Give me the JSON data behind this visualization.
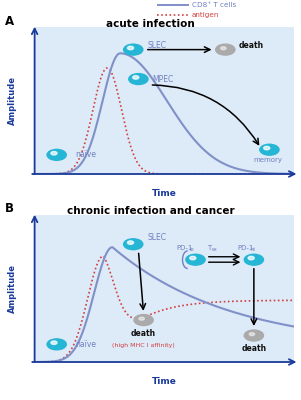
{
  "title_a": "acute infection",
  "title_b": "chronic infection and cancer",
  "legend_cd8": "CD8⁺ T cells",
  "legend_antigen": "antigen",
  "xlabel": "Time",
  "ylabel": "Amplitude",
  "cd8_color": "#8090c8",
  "antigen_color": "#d04040",
  "bg_color": "#ddeaf7",
  "cell_cyan": "#25b5d5",
  "cell_gray": "#aaaaaa",
  "axis_color": "#1a3a9a",
  "text_cd8": "#7080c0",
  "text_black": "#111111"
}
